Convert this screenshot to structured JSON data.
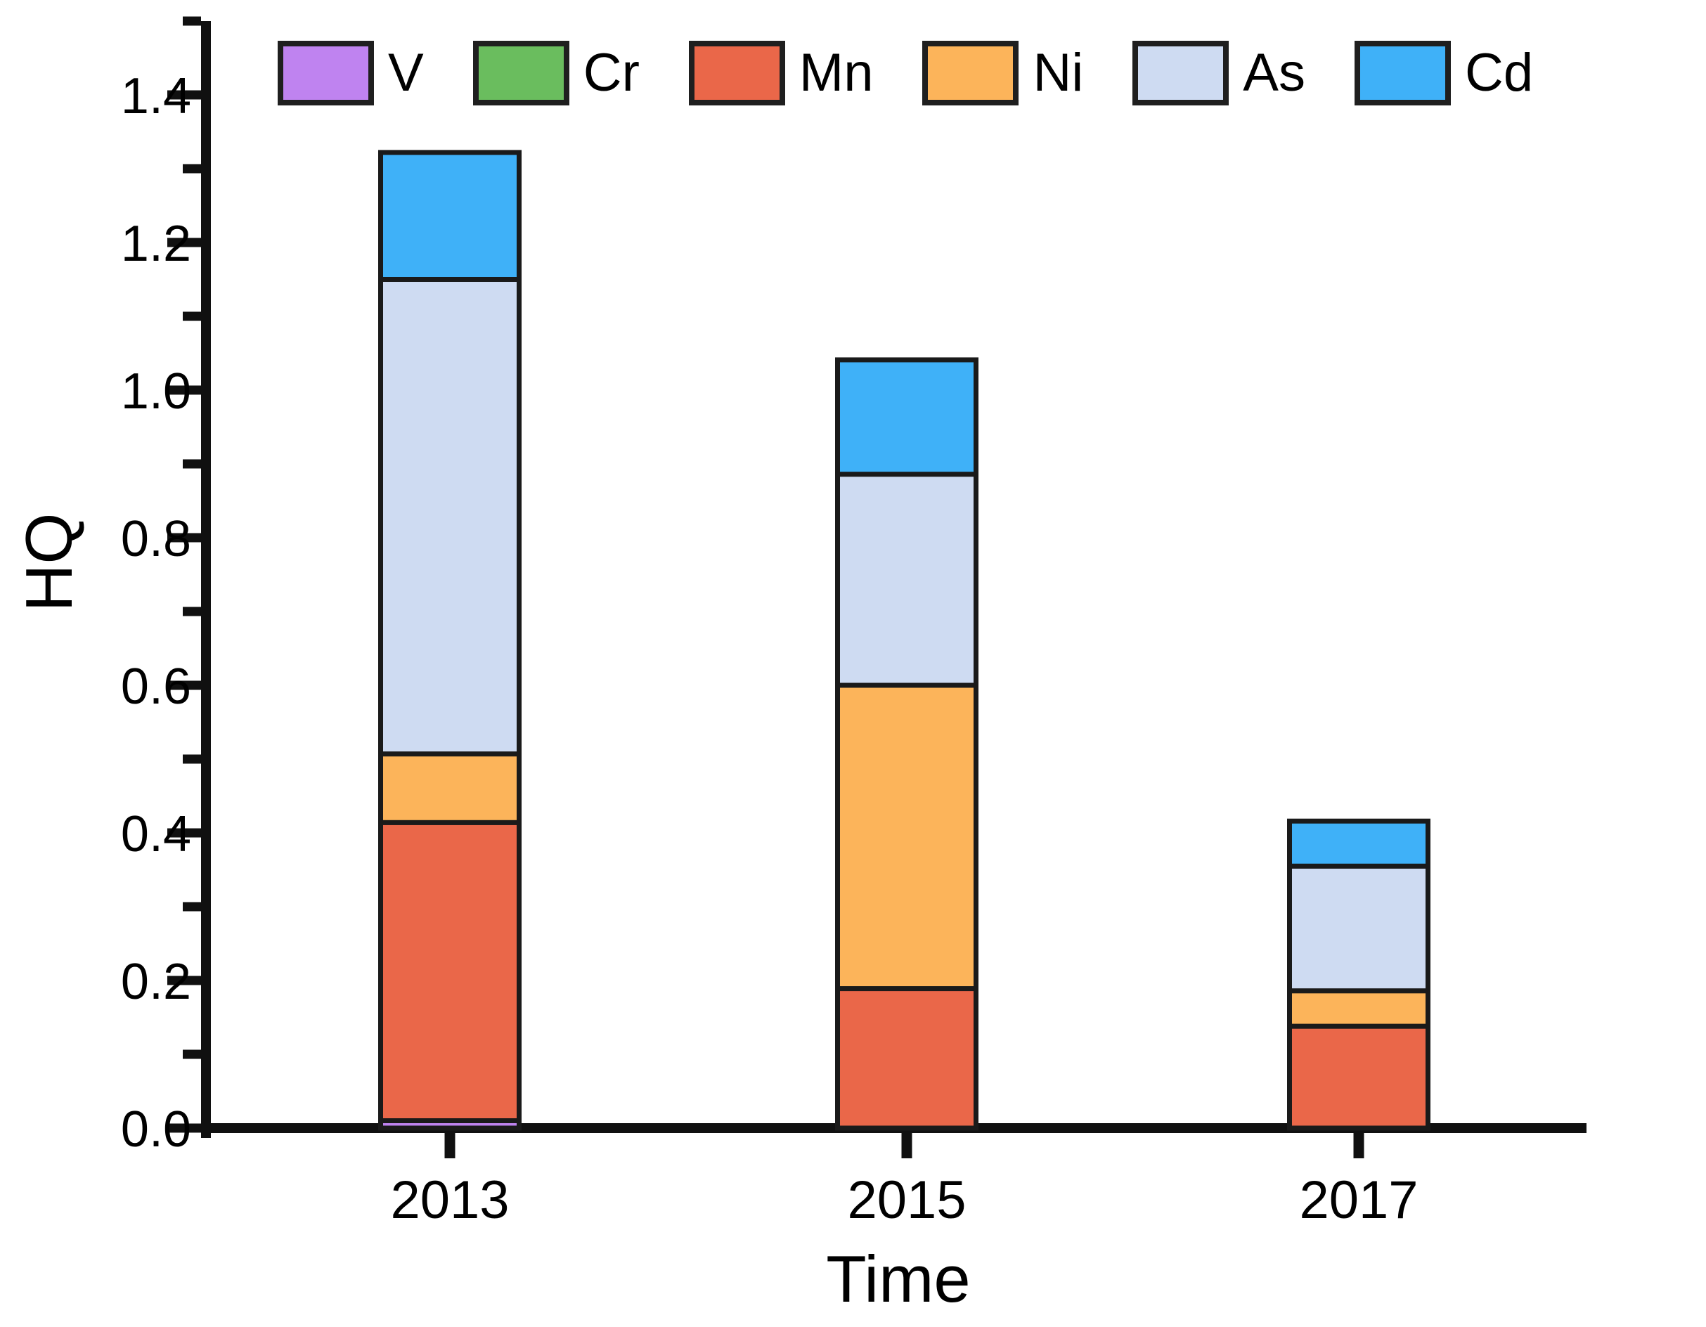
{
  "figure": {
    "background": "#ffffff",
    "axis_color": "#101010",
    "segment_border_color": "#1a1a1a"
  },
  "chart_data": {
    "type": "bar",
    "stacked": true,
    "title": "",
    "xlabel": "Time",
    "ylabel": "HQ",
    "categories": [
      "2013",
      "2015",
      "2017"
    ],
    "series": [
      {
        "name": "V",
        "color": "#bf83f0",
        "values": [
          0.01,
          0,
          0
        ]
      },
      {
        "name": "Cr",
        "color": "#6abd5e",
        "values": [
          0,
          0,
          0
        ]
      },
      {
        "name": "Mn",
        "color": "#ea6749",
        "values": [
          0.404,
          0.189,
          0.138
        ]
      },
      {
        "name": "Ni",
        "color": "#fcb45a",
        "values": [
          0.093,
          0.411,
          0.048
        ]
      },
      {
        "name": "As",
        "color": "#cedbf2",
        "values": [
          0.643,
          0.286,
          0.169
        ]
      },
      {
        "name": "Cd",
        "color": "#3fb1f8",
        "values": [
          0.172,
          0.155,
          0.061
        ]
      }
    ],
    "totals": [
      1.322,
      1.041,
      0.416
    ],
    "ylim": [
      0,
      1.5
    ],
    "y_major_tick_step": 0.2,
    "y_minor_tick_step": 0.1,
    "y_tick_labels": [
      "0.0",
      "0.2",
      "0.4",
      "0.6",
      "0.8",
      "1.0",
      "1.2",
      "1.4"
    ],
    "grid": false,
    "legend_position": "top",
    "legend_order": [
      "V",
      "Cr",
      "Mn",
      "Ni",
      "As",
      "Cd"
    ]
  }
}
